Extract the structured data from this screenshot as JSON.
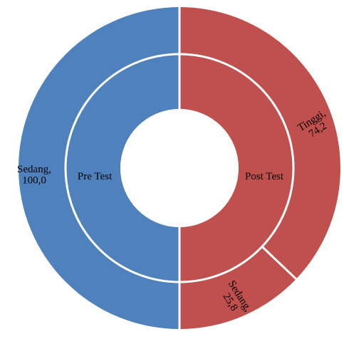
{
  "chart_data": {
    "type": "pie",
    "subtype": "sunburst",
    "rings": [
      {
        "name": "Pre Test",
        "slices": [
          {
            "label": "Sedang",
            "value": 100.0,
            "display": "Sedang,\n100,0",
            "color": "#4F81BD"
          }
        ]
      },
      {
        "name": "Post Test",
        "slices": [
          {
            "label": "Tinggi",
            "value": 74.2,
            "display": "Tinggi,\n74,2",
            "color": "#C0504D"
          },
          {
            "label": "Sedang",
            "value": 25.8,
            "display": "Sedang,\n25,8",
            "color": "#C0504D"
          }
        ]
      }
    ],
    "inner_labels": [
      "Pre Test",
      "Post Test"
    ],
    "colors": {
      "pre": "#4F81BD",
      "post": "#C0504D"
    },
    "legend": "none"
  }
}
